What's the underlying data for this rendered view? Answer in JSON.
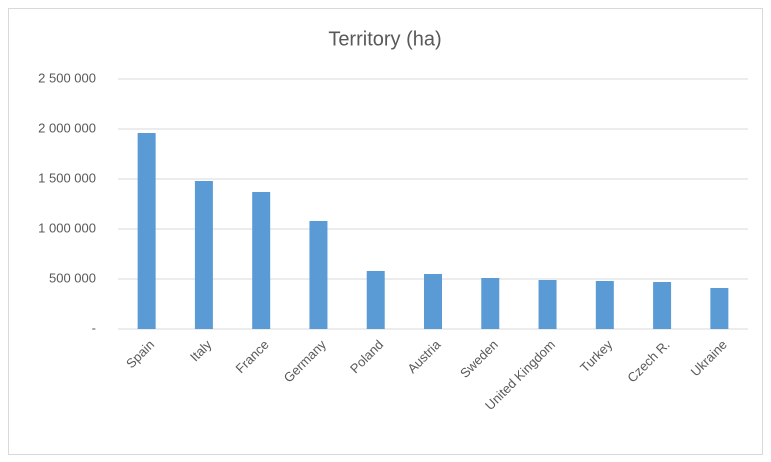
{
  "chart_data": {
    "type": "bar",
    "title": "Territory (ha)",
    "categories": [
      "Spain",
      "Italy",
      "France",
      "Germany",
      "Poland",
      "Austria",
      "Sweden",
      "United Kingdom",
      "Turkey",
      "Czech R.",
      "Ukraine"
    ],
    "values": [
      1960000,
      1480000,
      1370000,
      1080000,
      580000,
      550000,
      510000,
      490000,
      480000,
      470000,
      410000
    ],
    "color": "#5b9bd5",
    "ylim": [
      0,
      2500000
    ],
    "yticks": [
      {
        "value": 0,
        "label": "-"
      },
      {
        "value": 500000,
        "label": "500 000"
      },
      {
        "value": 1000000,
        "label": "1 000 000"
      },
      {
        "value": 1500000,
        "label": "1 500 000"
      },
      {
        "value": 2000000,
        "label": "2 000 000"
      },
      {
        "value": 2500000,
        "label": "2 500 000"
      }
    ],
    "grid": true
  }
}
